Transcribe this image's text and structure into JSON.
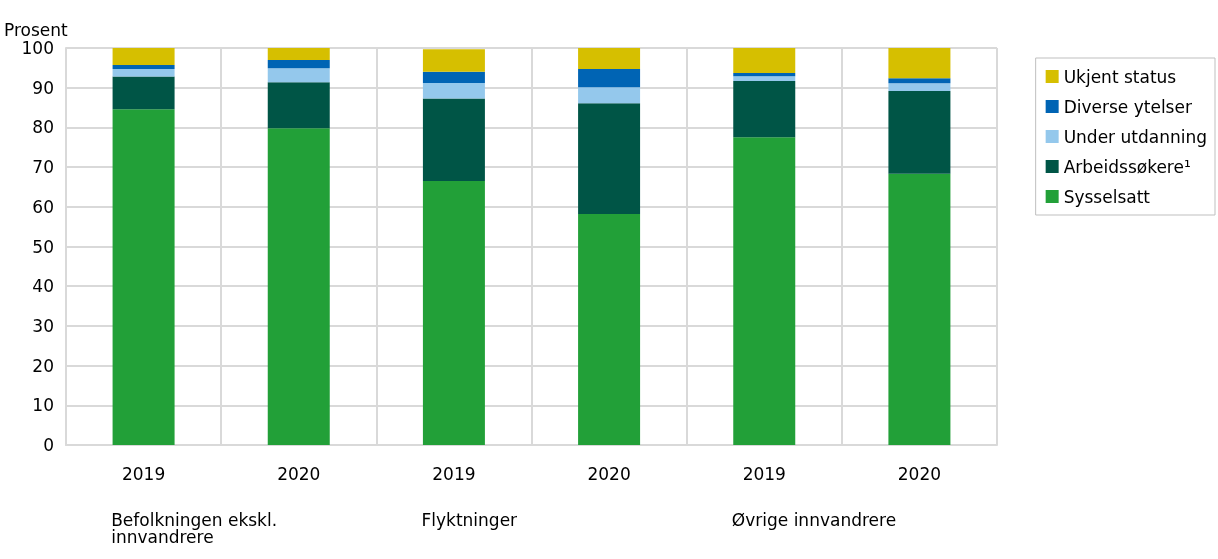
{
  "chart_data": {
    "type": "bar",
    "ylabel": "Prosent",
    "stacked": true,
    "categories": [
      "2019",
      "2020",
      "2019",
      "2020",
      "2019",
      "2020"
    ],
    "series": [
      {
        "name": "Sysselsatt",
        "color": "#22a038",
        "values": [
          84.6,
          79.8,
          66.5,
          58.2,
          77.5,
          68.3
        ]
      },
      {
        "name": "Arbeidssøkere¹",
        "color": "#005546",
        "values": [
          8.2,
          11.6,
          20.8,
          27.9,
          14.2,
          20.9
        ]
      },
      {
        "name": "Under utdanning",
        "color": "#94c8ec",
        "values": [
          1.9,
          3.5,
          3.9,
          4.0,
          1.2,
          1.9
        ]
      },
      {
        "name": "Diverse ytelser",
        "color": "#0064b4",
        "values": [
          1.0,
          2.1,
          2.8,
          4.6,
          0.8,
          1.3
        ]
      },
      {
        "name": "Ukjent status",
        "color": "#d6bf00",
        "values": [
          4.3,
          3.0,
          5.7,
          5.3,
          6.3,
          7.6
        ]
      }
    ],
    "annotations": [
      "Befolkningen ekskl. innvandrere",
      "Flyktninger",
      "Øvrige innvandrere"
    ],
    "ylim": [
      0,
      100
    ],
    "yticks": [
      0,
      10,
      20,
      30,
      40,
      50,
      60,
      70,
      80,
      90,
      100
    ],
    "grid": true,
    "legend": "right"
  }
}
